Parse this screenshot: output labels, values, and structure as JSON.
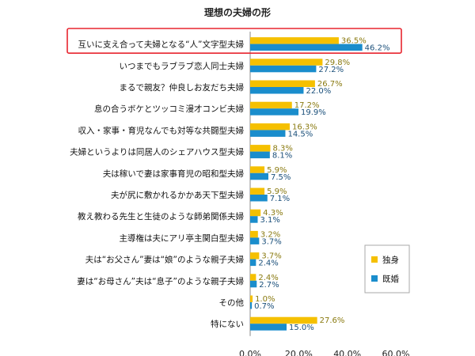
{
  "chart_data": {
    "type": "bar",
    "orientation": "horizontal",
    "title": "理想の夫婦の形",
    "categories": [
      "互いに支え合って夫婦となる“人”文字型夫婦",
      "いつまでもラブラブ恋人同士夫婦",
      "まるで親友？仲良しお友だち夫婦",
      "息の合うボケとツッコミ漫才コンビ夫婦",
      "収入・家事・育児なんでも対等な共闘型夫婦",
      "夫婦というよりは同居人のシェアハウス型夫婦",
      "夫は稼いで妻は家事育児の昭和型夫婦",
      "夫が尻に敷かれるかかあ天下型夫婦",
      "教え教わる先生と生徒のような師弟関係夫婦",
      "主導権は夫にアリ亭主関白型夫婦",
      "夫は“お父さん”妻は“娘”のような親子夫婦",
      "妻は“お母さん”夫は“息子”のような親子夫婦",
      "その他",
      "特にない"
    ],
    "series": [
      {
        "name": "独身",
        "color": "#F5C000",
        "values": [
          36.5,
          29.8,
          26.7,
          17.2,
          16.3,
          8.3,
          5.9,
          5.9,
          4.3,
          3.2,
          3.7,
          2.4,
          1.0,
          27.6
        ],
        "labels": [
          "36.5%",
          "29.8%",
          "26.7%",
          "17.2%",
          "16.3%",
          "8.3%",
          "5.9%",
          "5.9%",
          "4.3%",
          "3.2%",
          "3.7%",
          "2.4%",
          "1.0%",
          "27.6%"
        ]
      },
      {
        "name": "既婚",
        "color": "#1A8DCC",
        "values": [
          46.2,
          27.2,
          22.0,
          19.9,
          14.5,
          8.1,
          7.5,
          7.1,
          3.1,
          3.7,
          2.4,
          2.7,
          0.7,
          15.0
        ],
        "labels": [
          "46.2%",
          "27.2%",
          "22.0%",
          "19.9%",
          "14.5%",
          "8.1%",
          "7.5%",
          "7.1%",
          "3.1%",
          "3.7%",
          "2.4%",
          "2.7%",
          "0.7%",
          "15.0%"
        ]
      }
    ],
    "xlim": [
      0,
      60
    ],
    "xticks": [
      "0.0%",
      "20.0%",
      "40.0%",
      "60.0%"
    ],
    "grid": false,
    "legend_position": "lower-right",
    "highlighted_category": "互いに支え合って夫婦となる“人”文字型夫婦",
    "highlight_color": "#E8252F",
    "single_label_color": "#8A7A10",
    "married_label_color": "#1A4F7A"
  }
}
